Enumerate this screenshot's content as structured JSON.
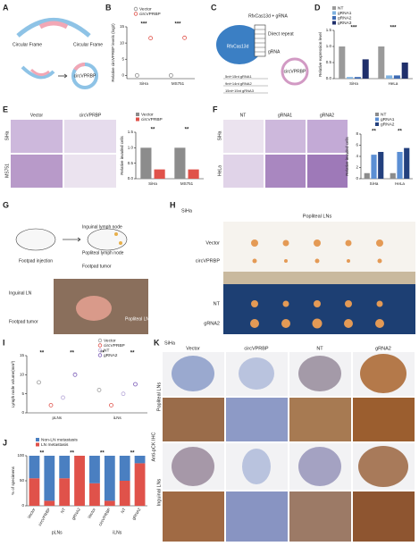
{
  "panels": {
    "labels": [
      "A",
      "B",
      "C",
      "D",
      "E",
      "F",
      "G",
      "H",
      "I",
      "J",
      "K"
    ]
  },
  "a": {
    "texts": [
      "Circular Frame",
      "Circular Frame",
      "circVPRBP"
    ]
  },
  "c": {
    "texts": [
      "RfxCas13d + gRNA",
      "RfxCas13d",
      "Direct repeat",
      "gRNA",
      "circVPRBP",
      "5nt+15nt gRNA1",
      "9nt+14nt gRNA2",
      "15nt+15nt gRNA3"
    ]
  },
  "e": {
    "columns": [
      "Vector",
      "circVPRBP"
    ],
    "rows": [
      "SiHa",
      "MS751"
    ]
  },
  "f": {
    "columns": [
      "NT",
      "gRNA1",
      "gRNA2"
    ],
    "rows": [
      "SiHa",
      "HeLa"
    ]
  },
  "g": {
    "texts": [
      "Footpad injection",
      "Inguinal lymph node",
      "Popliteal lymph node",
      "Footpad tumor",
      "Inguinal LN",
      "Popliteal LN",
      "Footpad tumor"
    ]
  },
  "h": {
    "cell": "SiHa",
    "title": "Popliteal LNs",
    "rows": [
      "Vector",
      "circVPRBP",
      "NT",
      "gRNA2"
    ]
  },
  "k": {
    "cell": "SiHa",
    "columns": [
      "Vector",
      "circVPRBP",
      "NT",
      "gRNA2"
    ],
    "rows": [
      "Popliteal LNs",
      "Inguinal LNs"
    ],
    "stain": "Anti-pCK IHC"
  },
  "chart_data": [
    {
      "type": "dot",
      "ylabel": "Relative circVPRBP levels (log2)",
      "categories": [
        "SiHa",
        "MS751"
      ],
      "series": [
        {
          "name": "Vector",
          "color": "#8c8c8c",
          "values": [
            0,
            0
          ]
        },
        {
          "name": "circVPRBP",
          "color": "#e0524a",
          "values": [
            11.5,
            11.6
          ]
        }
      ],
      "ylim": [
        -1,
        15
      ],
      "yticks": [
        0,
        5,
        10,
        15
      ],
      "annotations": [
        "***",
        "***"
      ]
    },
    {
      "type": "bar",
      "ylabel": "Relative expression level",
      "categories": [
        "SiHa",
        "HeLa"
      ],
      "series": [
        {
          "name": "NT",
          "color": "#9a9a9a",
          "values": [
            1.0,
            1.0
          ]
        },
        {
          "name": "gRNA1",
          "color": "#7fb2e0",
          "values": [
            0.05,
            0.1
          ]
        },
        {
          "name": "gRNA2",
          "color": "#3d6ab3",
          "values": [
            0.05,
            0.1
          ]
        },
        {
          "name": "gRNA3",
          "color": "#1f2f6b",
          "values": [
            0.6,
            0.5
          ]
        }
      ],
      "ylim": [
        0,
        1.5
      ],
      "yticks": [
        {
          "value": 0,
          "label": "0.0"
        },
        {
          "value": 0.5,
          "label": "0.5"
        },
        {
          "value": 1,
          "label": "1.0"
        },
        {
          "value": 1.5,
          "label": "1.5"
        }
      ],
      "annotations": [
        "***",
        "***"
      ]
    },
    {
      "type": "bar",
      "ylabel": "Relative invaded cells",
      "categories": [
        "SiHa",
        "MS751"
      ],
      "series": [
        {
          "name": "Vector",
          "color": "#8c8c8c",
          "values": [
            1.0,
            1.0
          ]
        },
        {
          "name": "circVPRBP",
          "color": "#e0524a",
          "values": [
            0.3,
            0.3
          ]
        }
      ],
      "ylim": [
        0,
        1.5
      ],
      "yticks": [
        {
          "value": 0,
          "label": "0.0"
        },
        {
          "value": 0.5,
          "label": "0.5"
        },
        {
          "value": 1,
          "label": "1.0"
        },
        {
          "value": 1.5,
          "label": "1.5"
        }
      ],
      "annotations": [
        "**",
        "**"
      ]
    },
    {
      "type": "bar",
      "ylabel": "Relative invaded cells",
      "categories": [
        "SiHa",
        "HeLa"
      ],
      "series": [
        {
          "name": "NT",
          "color": "#8c8c8c",
          "values": [
            1.0,
            1.0
          ]
        },
        {
          "name": "gRNA1",
          "color": "#5b8fd4",
          "values": [
            4.3,
            4.8
          ]
        },
        {
          "name": "gRNA2",
          "color": "#23407e",
          "values": [
            4.8,
            5.5
          ]
        }
      ],
      "ylim": [
        0,
        8
      ],
      "yticks": [
        0,
        2,
        4,
        6,
        8
      ],
      "annotations": [
        "**",
        "**"
      ]
    },
    {
      "type": "dot",
      "ylabel": "Lymph node volume(mm³)",
      "categories": [
        "pLNs",
        "iLNs"
      ],
      "series": [
        {
          "name": "Vector",
          "color": "#9a9a9a",
          "values": [
            8,
            6
          ]
        },
        {
          "name": "circVPRBP",
          "color": "#e0524a",
          "values": [
            2,
            2
          ]
        },
        {
          "name": "NT",
          "color": "#b8a9d9",
          "values": [
            4,
            5
          ]
        },
        {
          "name": "gRNA2",
          "color": "#7b5cb8",
          "values": [
            10,
            7.5
          ]
        }
      ],
      "ylim": [
        0,
        15
      ],
      "yticks": [
        0,
        5,
        10,
        15
      ],
      "annotations": [
        "**",
        "**",
        "**",
        "**"
      ]
    },
    {
      "type": "stacked_bar",
      "ylabel": "% of specimens",
      "categories": [
        "Vector",
        "circVPRBP",
        "NT",
        "gRNA2",
        "Vector",
        "circVPRBP",
        "NT",
        "gRNA2"
      ],
      "groups": [
        "pLNs",
        "iLNs"
      ],
      "series": [
        {
          "name": "Non-LN metastasis",
          "color": "#4a7fc1",
          "values": [
            45,
            90,
            45,
            0,
            55,
            90,
            50,
            15
          ]
        },
        {
          "name": "LN metastasis",
          "color": "#e0524a",
          "values": [
            55,
            10,
            55,
            100,
            45,
            10,
            50,
            85
          ]
        }
      ],
      "ylim": [
        0,
        100
      ],
      "yticks": [
        0,
        50,
        100
      ],
      "annotations": [
        "**",
        "**",
        "**",
        "**"
      ]
    }
  ]
}
